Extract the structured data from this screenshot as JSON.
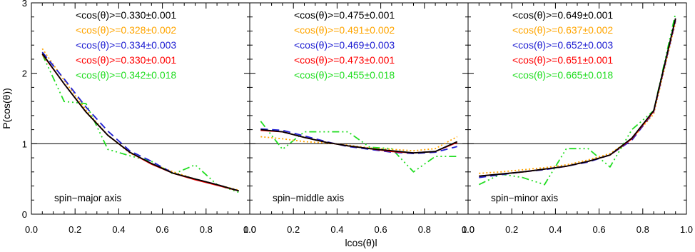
{
  "chart_data": {
    "type": "line",
    "ylabel": "P(cos(θ))",
    "xlabel": "lcos(θ)l",
    "x_ticks": [
      "0.0",
      "0.2",
      "0.4",
      "0.6",
      "0.8",
      "1.0"
    ],
    "y_ticks": [
      "0",
      "1",
      "2",
      "3"
    ],
    "xlim": [
      0,
      1
    ],
    "ylim": [
      0,
      3
    ],
    "reference_line_y": 1,
    "x": [
      0.05,
      0.15,
      0.25,
      0.35,
      0.45,
      0.55,
      0.65,
      0.75,
      0.85,
      0.95
    ],
    "series_styles": [
      {
        "color": "#000000",
        "dash": ""
      },
      {
        "color": "#ffa500",
        "dash": "2,3"
      },
      {
        "color": "#1e1ed2",
        "dash": "10,6"
      },
      {
        "color": "#ff0000",
        "dash": ""
      },
      {
        "color": "#22dd22",
        "dash": "10,4,2,4,2,4,2,4"
      }
    ],
    "panels": [
      {
        "label": "spin−major axis",
        "legend": [
          "<cos(θ)>=0.330±0.001",
          "<cos(θ)>=0.328±0.002",
          "<cos(θ)>=0.334±0.003",
          "<cos(θ)>=0.330±0.001",
          "<cos(θ)>=0.342±0.018"
        ],
        "series": [
          {
            "values": [
              2.28,
              1.85,
              1.45,
              1.12,
              0.88,
              0.72,
              0.58,
              0.5,
              0.42,
              0.33
            ]
          },
          {
            "values": [
              2.35,
              1.9,
              1.48,
              1.12,
              0.87,
              0.72,
              0.6,
              0.5,
              0.42,
              0.34
            ]
          },
          {
            "values": [
              2.3,
              1.92,
              1.52,
              1.18,
              0.9,
              0.75,
              0.58,
              0.5,
              0.42,
              0.33
            ]
          },
          {
            "values": [
              2.27,
              1.85,
              1.45,
              1.12,
              0.88,
              0.71,
              0.58,
              0.49,
              0.41,
              0.33
            ]
          },
          {
            "values": [
              2.27,
              1.6,
              1.57,
              0.92,
              0.83,
              0.75,
              0.57,
              0.7,
              0.42,
              0.31
            ]
          }
        ]
      },
      {
        "label": "spin−middle axis",
        "legend": [
          "<cos(θ)>=0.475±0.001",
          "<cos(θ)>=0.491±0.002",
          "<cos(θ)>=0.469±0.003",
          "<cos(θ)>=0.473±0.001",
          "<cos(θ)>=0.455±0.018"
        ],
        "series": [
          {
            "values": [
              1.2,
              1.17,
              1.09,
              1.02,
              0.97,
              0.93,
              0.9,
              0.87,
              0.89,
              1.03
            ]
          },
          {
            "values": [
              1.1,
              1.07,
              1.03,
              1.01,
              0.98,
              0.94,
              0.92,
              0.9,
              0.93,
              1.1
            ]
          },
          {
            "values": [
              1.21,
              1.19,
              1.11,
              1.03,
              0.96,
              0.92,
              0.88,
              0.86,
              0.88,
              0.96
            ]
          },
          {
            "values": [
              1.19,
              1.17,
              1.09,
              1.02,
              0.97,
              0.93,
              0.89,
              0.87,
              0.89,
              1.02
            ]
          },
          {
            "values": [
              1.32,
              0.92,
              1.17,
              1.17,
              1.17,
              0.95,
              0.93,
              0.6,
              0.82,
              0.82
            ]
          }
        ]
      },
      {
        "label": "spin−minor axis",
        "legend": [
          "<cos(θ)>=0.649±0.001",
          "<cos(θ)>=0.637±0.002",
          "<cos(θ)>=0.652±0.003",
          "<cos(θ)>=0.651±0.001",
          "<cos(θ)>=0.665±0.018"
        ],
        "series": [
          {
            "values": [
              0.54,
              0.57,
              0.6,
              0.64,
              0.68,
              0.75,
              0.84,
              1.08,
              1.47,
              2.78
            ]
          },
          {
            "values": [
              0.58,
              0.6,
              0.63,
              0.66,
              0.7,
              0.77,
              0.86,
              1.07,
              1.42,
              2.72
            ]
          },
          {
            "values": [
              0.52,
              0.56,
              0.6,
              0.63,
              0.68,
              0.74,
              0.84,
              1.05,
              1.45,
              2.75
            ]
          },
          {
            "values": [
              0.54,
              0.57,
              0.6,
              0.64,
              0.68,
              0.75,
              0.84,
              1.07,
              1.46,
              2.77
            ]
          },
          {
            "values": [
              0.42,
              0.57,
              0.52,
              0.42,
              0.93,
              0.93,
              0.67,
              1.2,
              1.47,
              2.85
            ]
          }
        ]
      }
    ]
  }
}
